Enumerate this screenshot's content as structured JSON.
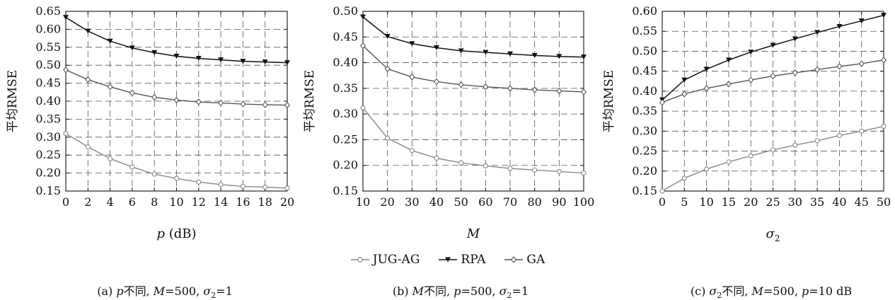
{
  "chart_data": [
    {
      "type": "line",
      "panel": "a",
      "xlabel_var": "p",
      "xlabel_unit": "(dB)",
      "ylabel": "平均RMSE",
      "x": [
        0,
        2,
        4,
        6,
        8,
        10,
        12,
        14,
        16,
        18,
        20
      ],
      "xlim": [
        0,
        20
      ],
      "ylim": [
        0.15,
        0.65
      ],
      "yticks": [
        0.15,
        0.2,
        0.25,
        0.3,
        0.35,
        0.4,
        0.45,
        0.5,
        0.55,
        0.6,
        0.65
      ],
      "grid": true,
      "series": [
        {
          "name": "JUG-AG",
          "values": [
            0.31,
            0.273,
            0.24,
            0.217,
            0.197,
            0.185,
            0.175,
            0.168,
            0.163,
            0.161,
            0.158
          ]
        },
        {
          "name": "RPA",
          "values": [
            0.633,
            0.595,
            0.567,
            0.548,
            0.535,
            0.525,
            0.519,
            0.515,
            0.511,
            0.509,
            0.507
          ]
        },
        {
          "name": "GA",
          "values": [
            0.487,
            0.46,
            0.44,
            0.423,
            0.411,
            0.403,
            0.398,
            0.395,
            0.392,
            0.39,
            0.389
          ]
        }
      ],
      "caption": {
        "prefix": "(a) ",
        "v1": "p",
        "t1": "不同, ",
        "v2": "M",
        "t2": "=500, ",
        "v3": "σ",
        "sub3": "2",
        "t3": "=1"
      }
    },
    {
      "type": "line",
      "panel": "b",
      "xlabel_var": "M",
      "xlabel_unit": "",
      "ylabel": "平均RMSE",
      "x": [
        10,
        20,
        30,
        40,
        50,
        60,
        70,
        80,
        90,
        100
      ],
      "xlim": [
        10,
        100
      ],
      "ylim": [
        0.15,
        0.5
      ],
      "yticks": [
        0.15,
        0.2,
        0.25,
        0.3,
        0.35,
        0.4,
        0.45,
        0.5
      ],
      "grid": true,
      "series": [
        {
          "name": "JUG-AG",
          "values": [
            0.312,
            0.253,
            0.229,
            0.214,
            0.205,
            0.199,
            0.194,
            0.191,
            0.188,
            0.185
          ]
        },
        {
          "name": "RPA",
          "values": [
            0.489,
            0.451,
            0.437,
            0.429,
            0.423,
            0.42,
            0.417,
            0.414,
            0.412,
            0.411
          ]
        },
        {
          "name": "GA",
          "values": [
            0.433,
            0.388,
            0.372,
            0.363,
            0.357,
            0.353,
            0.35,
            0.347,
            0.345,
            0.343
          ]
        }
      ],
      "caption": {
        "prefix": "(b) ",
        "v1": "M",
        "t1": "不同, ",
        "v2": "p",
        "t2": "=500, ",
        "v3": "σ",
        "sub3": "2",
        "t3": "=1"
      }
    },
    {
      "type": "line",
      "panel": "c",
      "xlabel_var": "σ",
      "xlabel_sub": "2",
      "xlabel_unit": "",
      "ylabel": "平均RMSE",
      "x": [
        0,
        5,
        10,
        15,
        20,
        25,
        30,
        35,
        40,
        45,
        50
      ],
      "xlim": [
        0,
        50
      ],
      "ylim": [
        0.15,
        0.6
      ],
      "yticks": [
        0.15,
        0.2,
        0.25,
        0.3,
        0.35,
        0.4,
        0.45,
        0.5,
        0.55,
        0.6
      ],
      "grid": true,
      "series": [
        {
          "name": "JUG-AG",
          "values": [
            0.15,
            0.182,
            0.205,
            0.223,
            0.238,
            0.253,
            0.265,
            0.276,
            0.289,
            0.3,
            0.312
          ]
        },
        {
          "name": "RPA",
          "values": [
            0.378,
            0.428,
            0.455,
            0.478,
            0.498,
            0.515,
            0.531,
            0.547,
            0.562,
            0.576,
            0.59
          ]
        },
        {
          "name": "GA",
          "values": [
            0.372,
            0.393,
            0.407,
            0.418,
            0.428,
            0.438,
            0.446,
            0.454,
            0.462,
            0.469,
            0.478
          ]
        }
      ],
      "caption": {
        "prefix": "(c) ",
        "v1": "σ",
        "sub1": "2",
        "t1": "不同, ",
        "v2": "M",
        "t2": "=500, ",
        "v3": "p",
        "t3": "=10 dB"
      }
    }
  ],
  "legend": {
    "placement": "bottom-center",
    "items": [
      {
        "label": "JUG-AG",
        "marker": "circle",
        "color": "#888888"
      },
      {
        "label": "RPA",
        "marker": "triangle-down",
        "color": "#111111"
      },
      {
        "label": "GA",
        "marker": "diamond",
        "color": "#555555"
      }
    ]
  }
}
